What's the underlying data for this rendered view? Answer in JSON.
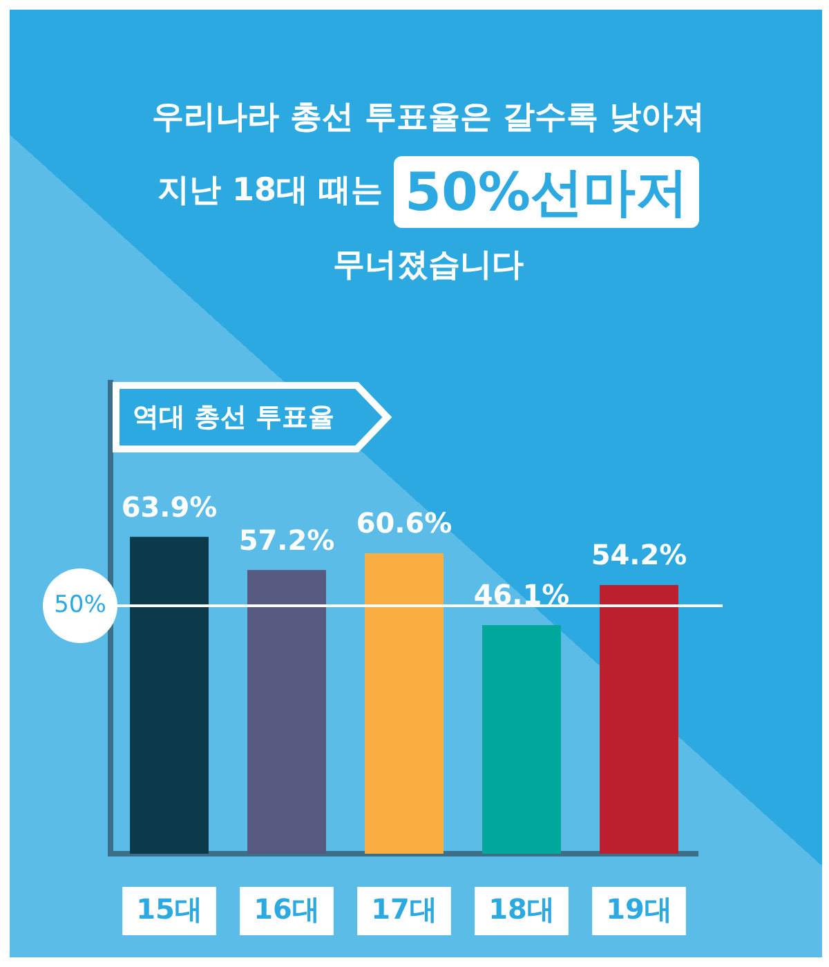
{
  "chart_data": {
    "type": "bar",
    "title": "우리나라 총선 투표율은 갈수록 낮아져\n지난 18대 때는 50%선마저\n무너졌습니다",
    "subtitle": "역대 총선 투표율",
    "categories": [
      "15대",
      "16대",
      "17대",
      "18대",
      "19대"
    ],
    "values": [
      63.9,
      57.2,
      60.6,
      46.1,
      54.2
    ],
    "colors": [
      "#0c3a4a",
      "#575a80",
      "#f9ae42",
      "#00a79b",
      "#bc1f2d"
    ],
    "value_labels": [
      "63.9%",
      "57.2%",
      "60.6%",
      "46.1%",
      "54.2%"
    ],
    "ylim": [
      0,
      95
    ],
    "ref_lines": [
      {
        "axis": "y",
        "value": 50,
        "label": "50%",
        "color": "#ffffff"
      }
    ],
    "grid": false,
    "tick_labels": "x"
  }
}
